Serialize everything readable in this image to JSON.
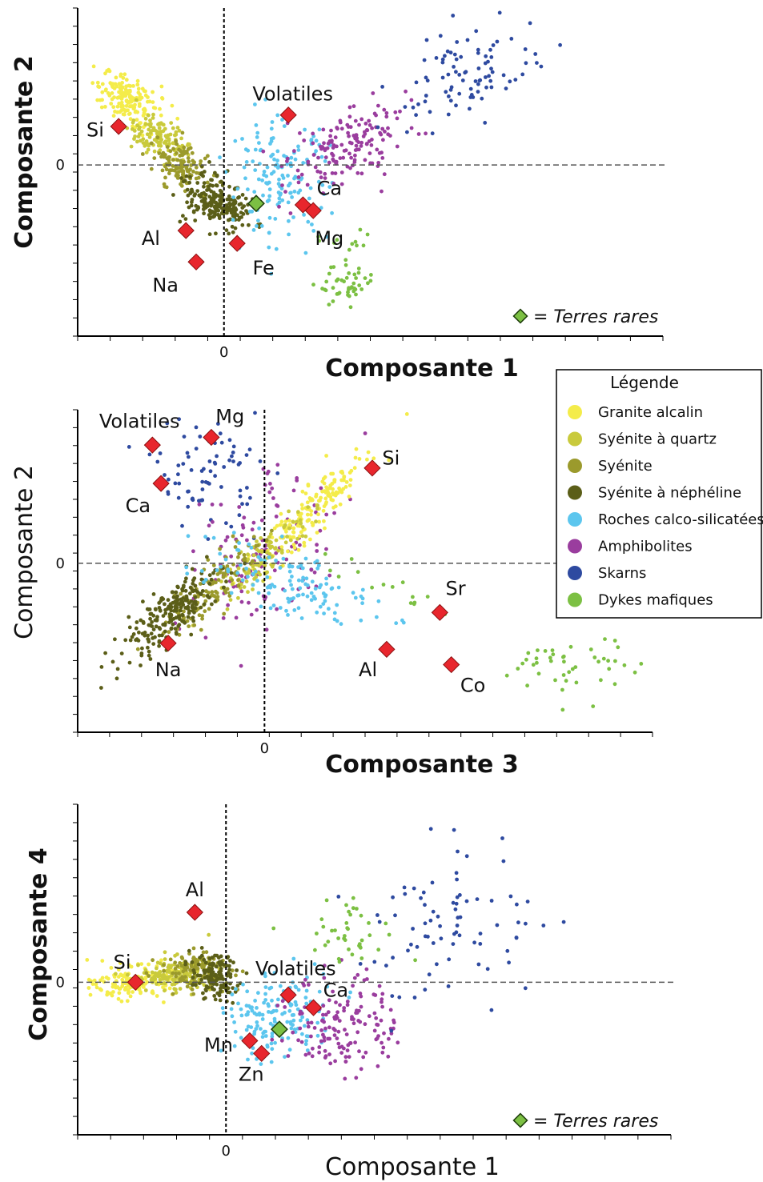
{
  "colors": {
    "granite_alcalin": "#f4ec4a",
    "syenite_quartz": "#c9ca3c",
    "syenite": "#9b9a2c",
    "syenite_nepheline": "#5b5e18",
    "roches_calco": "#5cc6ee",
    "amphibolites": "#9a3d9e",
    "skarns": "#2e4aa0",
    "dykes": "#7cc043",
    "element_marker": "#e8262d",
    "rare_earth_marker": "#7cc043"
  },
  "legend": {
    "title": "Légende",
    "placement": "right",
    "items": [
      {
        "key": "granite_alcalin",
        "label": "Granite alcalin"
      },
      {
        "key": "syenite_quartz",
        "label": "Syénite à quartz"
      },
      {
        "key": "syenite",
        "label": "Syénite"
      },
      {
        "key": "syenite_nepheline",
        "label": "Syénite à néphéline"
      },
      {
        "key": "roches_calco",
        "label": "Roches calco-silicatées"
      },
      {
        "key": "amphibolites",
        "label": "Amphibolites"
      },
      {
        "key": "skarns",
        "label": "Skarns"
      },
      {
        "key": "dykes",
        "label": "Dykes mafiques"
      }
    ]
  },
  "chart_data": [
    {
      "type": "scatter",
      "xlabel": "Composante 1",
      "ylabel": "Composante 2",
      "x_zero_label": "0",
      "y_zero_label": "0",
      "xlim": [
        -1.0,
        3.0
      ],
      "ylim": [
        -1.2,
        1.1
      ],
      "grid": false,
      "note": "= Terres rares",
      "clusters": [
        {
          "key": "granite_alcalin",
          "n": 170,
          "cx": -0.65,
          "cy": 0.45,
          "sx": 0.13,
          "sy": 0.07,
          "dir": [
            0.83,
            -0.56
          ]
        },
        {
          "key": "syenite_quartz",
          "n": 120,
          "cx": -0.45,
          "cy": 0.2,
          "sx": 0.1,
          "sy": 0.07,
          "dir": [
            0.8,
            -0.6
          ]
        },
        {
          "key": "syenite",
          "n": 130,
          "cx": -0.3,
          "cy": 0.0,
          "sx": 0.1,
          "sy": 0.07,
          "dir": [
            0.8,
            -0.6
          ]
        },
        {
          "key": "syenite_nepheline",
          "n": 220,
          "cx": -0.05,
          "cy": -0.27,
          "sx": 0.13,
          "sy": 0.08,
          "dir": [
            0.85,
            -0.5
          ]
        },
        {
          "key": "roches_calco",
          "n": 150,
          "cx": 0.38,
          "cy": -0.1,
          "sx": 0.17,
          "sy": 0.2,
          "dir": [
            1,
            0
          ]
        },
        {
          "key": "amphibolites",
          "n": 160,
          "cx": 0.85,
          "cy": 0.15,
          "sx": 0.25,
          "sy": 0.12,
          "dir": [
            0.85,
            0.52
          ]
        },
        {
          "key": "skarns",
          "n": 90,
          "cx": 1.7,
          "cy": 0.65,
          "sx": 0.28,
          "sy": 0.15,
          "dir": [
            0.85,
            0.52
          ]
        },
        {
          "key": "dykes",
          "n": 45,
          "cx": 0.85,
          "cy": -0.85,
          "sx": 0.1,
          "sy": 0.07,
          "dir": [
            1,
            0
          ]
        },
        {
          "key": "dykes",
          "n": 12,
          "cx": 0.85,
          "cy": -0.55,
          "sx": 0.15,
          "sy": 0.06,
          "dir": [
            1,
            0
          ]
        }
      ],
      "elements": [
        {
          "label": "Si",
          "x": -0.72,
          "y": 0.27,
          "lx": -0.88,
          "ly": 0.24,
          "anchor": "middle"
        },
        {
          "label": "Volatiles",
          "x": 0.44,
          "y": 0.35,
          "lx": 0.47,
          "ly": 0.49,
          "anchor": "middle"
        },
        {
          "label": "Ca",
          "x": 0.54,
          "y": -0.28,
          "lx": 0.72,
          "ly": -0.17,
          "anchor": "middle"
        },
        {
          "label": "Mg",
          "x": 0.61,
          "y": -0.32,
          "lx": 0.72,
          "ly": -0.52,
          "anchor": "middle"
        },
        {
          "label": "Al",
          "x": -0.26,
          "y": -0.46,
          "lx": -0.5,
          "ly": -0.52,
          "anchor": "middle"
        },
        {
          "label": "Fe",
          "x": 0.09,
          "y": -0.55,
          "lx": 0.27,
          "ly": -0.73,
          "anchor": "middle"
        },
        {
          "label": "Na",
          "x": -0.19,
          "y": -0.68,
          "lx": -0.4,
          "ly": -0.85,
          "anchor": "middle"
        }
      ],
      "rare_earths": {
        "x": 0.22,
        "y": -0.27
      }
    },
    {
      "type": "scatter",
      "xlabel": "Composante 3",
      "ylabel": "Composante 2",
      "x_zero_label": "0",
      "y_zero_label": "0",
      "xlim": [
        -1.3,
        2.7
      ],
      "ylim": [
        -1.1,
        1.0
      ],
      "grid": false,
      "clusters": [
        {
          "key": "skarns",
          "n": 80,
          "cx": -0.4,
          "cy": 0.6,
          "sx": 0.18,
          "sy": 0.18,
          "dir": [
            1,
            0
          ]
        },
        {
          "key": "amphibolites",
          "n": 130,
          "cx": 0.0,
          "cy": 0.05,
          "sx": 0.3,
          "sy": 0.2,
          "dir": [
            0.7,
            0.7
          ]
        },
        {
          "key": "granite_alcalin",
          "n": 170,
          "cx": 0.35,
          "cy": 0.35,
          "sx": 0.25,
          "sy": 0.06,
          "dir": [
            0.72,
            0.69
          ]
        },
        {
          "key": "syenite_quartz",
          "n": 110,
          "cx": 0.0,
          "cy": 0.05,
          "sx": 0.22,
          "sy": 0.06,
          "dir": [
            0.72,
            0.69
          ]
        },
        {
          "key": "syenite",
          "n": 120,
          "cx": -0.35,
          "cy": -0.15,
          "sx": 0.22,
          "sy": 0.06,
          "dir": [
            0.72,
            0.69
          ]
        },
        {
          "key": "syenite_nepheline",
          "n": 230,
          "cx": -0.65,
          "cy": -0.32,
          "sx": 0.22,
          "sy": 0.07,
          "dir": [
            0.77,
            0.64
          ]
        },
        {
          "key": "roches_calco",
          "n": 130,
          "cx": 0.1,
          "cy": -0.1,
          "sx": 0.35,
          "sy": 0.12,
          "dir": [
            0.95,
            -0.3
          ]
        },
        {
          "key": "dykes",
          "n": 45,
          "cx": 2.15,
          "cy": -0.68,
          "sx": 0.22,
          "sy": 0.1,
          "dir": [
            1,
            0
          ]
        },
        {
          "key": "dykes",
          "n": 15,
          "cx": 1.1,
          "cy": -0.25,
          "sx": 0.45,
          "sy": 0.1,
          "dir": [
            0.9,
            -0.3
          ]
        }
      ],
      "elements": [
        {
          "label": "Volatiles",
          "x": -0.78,
          "y": 0.77,
          "lx": -0.87,
          "ly": 0.92,
          "anchor": "middle"
        },
        {
          "label": "Mg",
          "x": -0.37,
          "y": 0.82,
          "lx": -0.24,
          "ly": 0.95,
          "anchor": "middle"
        },
        {
          "label": "Ca",
          "x": -0.72,
          "y": 0.52,
          "lx": -0.88,
          "ly": 0.37,
          "anchor": "middle"
        },
        {
          "label": "Si",
          "x": 0.75,
          "y": 0.62,
          "lx": 0.88,
          "ly": 0.68,
          "anchor": "middle"
        },
        {
          "label": "Sr",
          "x": 1.22,
          "y": -0.32,
          "lx": 1.33,
          "ly": -0.17,
          "anchor": "middle"
        },
        {
          "label": "Na",
          "x": -0.67,
          "y": -0.52,
          "lx": -0.67,
          "ly": -0.7,
          "anchor": "middle"
        },
        {
          "label": "Al",
          "x": 0.85,
          "y": -0.56,
          "lx": 0.72,
          "ly": -0.7,
          "anchor": "middle"
        },
        {
          "label": "Co",
          "x": 1.3,
          "y": -0.66,
          "lx": 1.45,
          "ly": -0.8,
          "anchor": "middle"
        }
      ]
    },
    {
      "type": "scatter",
      "xlabel": "Composante 1",
      "ylabel": "Composante 4",
      "x_zero_label": "0",
      "y_zero_label": "0",
      "xlim": [
        -1.0,
        3.0
      ],
      "ylim": [
        -1.2,
        1.4
      ],
      "grid": false,
      "note": "= Terres rares",
      "clusters": [
        {
          "key": "granite_alcalin",
          "n": 160,
          "cx": -0.62,
          "cy": 0.0,
          "sx": 0.13,
          "sy": 0.06,
          "dir": [
            1,
            0.05
          ]
        },
        {
          "key": "syenite_quartz",
          "n": 130,
          "cx": -0.35,
          "cy": 0.06,
          "sx": 0.13,
          "sy": 0.07,
          "dir": [
            1,
            0.05
          ]
        },
        {
          "key": "syenite",
          "n": 110,
          "cx": -0.2,
          "cy": 0.1,
          "sx": 0.12,
          "sy": 0.07,
          "dir": [
            1,
            0
          ]
        },
        {
          "key": "syenite_nepheline",
          "n": 130,
          "cx": -0.08,
          "cy": 0.04,
          "sx": 0.08,
          "sy": 0.09,
          "dir": [
            1,
            0
          ]
        },
        {
          "key": "roches_calco",
          "n": 160,
          "cx": 0.35,
          "cy": -0.25,
          "sx": 0.15,
          "sy": 0.18,
          "dir": [
            0.8,
            -0.6
          ]
        },
        {
          "key": "amphibolites",
          "n": 150,
          "cx": 0.8,
          "cy": -0.32,
          "sx": 0.18,
          "sy": 0.2,
          "dir": [
            1,
            0
          ]
        },
        {
          "key": "dykes",
          "n": 40,
          "cx": 0.85,
          "cy": 0.4,
          "sx": 0.18,
          "sy": 0.13,
          "dir": [
            1,
            0
          ]
        },
        {
          "key": "skarns",
          "n": 80,
          "cx": 1.5,
          "cy": 0.45,
          "sx": 0.35,
          "sy": 0.3,
          "dir": [
            0.85,
            0.52
          ]
        }
      ],
      "elements": [
        {
          "label": "Al",
          "x": -0.21,
          "y": 0.55,
          "lx": -0.21,
          "ly": 0.72,
          "anchor": "middle"
        },
        {
          "label": "Si",
          "x": -0.61,
          "y": 0.0,
          "lx": -0.7,
          "ly": 0.15,
          "anchor": "middle"
        },
        {
          "label": "Volatiles",
          "x": 0.42,
          "y": -0.1,
          "lx": 0.47,
          "ly": 0.1,
          "anchor": "middle"
        },
        {
          "label": "Ca",
          "x": 0.59,
          "y": -0.2,
          "lx": 0.74,
          "ly": -0.07,
          "anchor": "middle"
        },
        {
          "label": "Mn",
          "x": 0.16,
          "y": -0.46,
          "lx": -0.05,
          "ly": -0.5,
          "anchor": "middle"
        },
        {
          "label": "Zn",
          "x": 0.24,
          "y": -0.56,
          "lx": 0.17,
          "ly": -0.73,
          "anchor": "middle"
        }
      ],
      "rare_earths": {
        "x": 0.36,
        "y": -0.37
      }
    }
  ]
}
